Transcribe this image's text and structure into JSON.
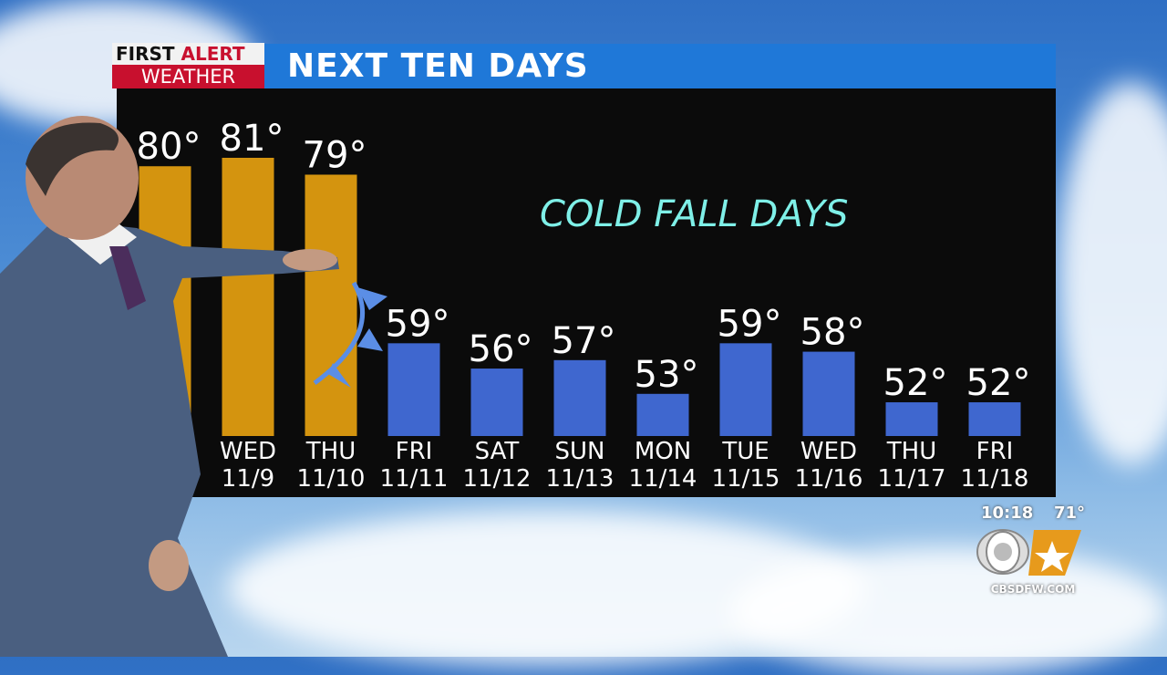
{
  "header": {
    "logo_line1_a": "FIRST",
    "logo_line1_b": "ALERT",
    "logo_line2": "WEATHER",
    "title": "NEXT TEN DAYS"
  },
  "annotation": "COLD FALL DAYS",
  "station_bug": {
    "time": "10:18",
    "temp": "71°",
    "network": "CBS 11",
    "url": "CBSDFW.COM"
  },
  "colors": {
    "warm_bar": "#d4940f",
    "cold_bar": "#3f67cf",
    "title_bar": "#1f78d8",
    "brand_red": "#c8102e",
    "annotation": "#7ff0e8"
  },
  "chart_data": {
    "type": "bar",
    "title": "NEXT TEN DAYS",
    "categories": [
      "",
      "WED 11/9",
      "THU 11/10",
      "FRI 11/11",
      "SAT 11/12",
      "SUN 11/13",
      "MON 11/14",
      "TUE 11/15",
      "WED 11/16",
      "THU 11/17",
      "FRI 11/18"
    ],
    "days": [
      "",
      "WED",
      "THU",
      "FRI",
      "SAT",
      "SUN",
      "MON",
      "TUE",
      "WED",
      "THU",
      "FRI"
    ],
    "dates": [
      "",
      "11/9",
      "11/10",
      "11/11",
      "11/12",
      "11/13",
      "11/14",
      "11/15",
      "11/16",
      "11/17",
      "11/18"
    ],
    "values": [
      80,
      81,
      79,
      59,
      56,
      57,
      53,
      59,
      58,
      52,
      52
    ],
    "value_labels": [
      "80°",
      "81°",
      "79°",
      "59°",
      "56°",
      "57°",
      "53°",
      "59°",
      "58°",
      "52°",
      "52°"
    ],
    "bar_colors": [
      "warm",
      "warm",
      "warm",
      "cold",
      "cold",
      "cold",
      "cold",
      "cold",
      "cold",
      "cold",
      "cold"
    ],
    "unit": "°F",
    "grid": false,
    "annotations": [
      "COLD FALL DAYS",
      "cold front symbol between THU 11/10 and FRI 11/11"
    ]
  }
}
